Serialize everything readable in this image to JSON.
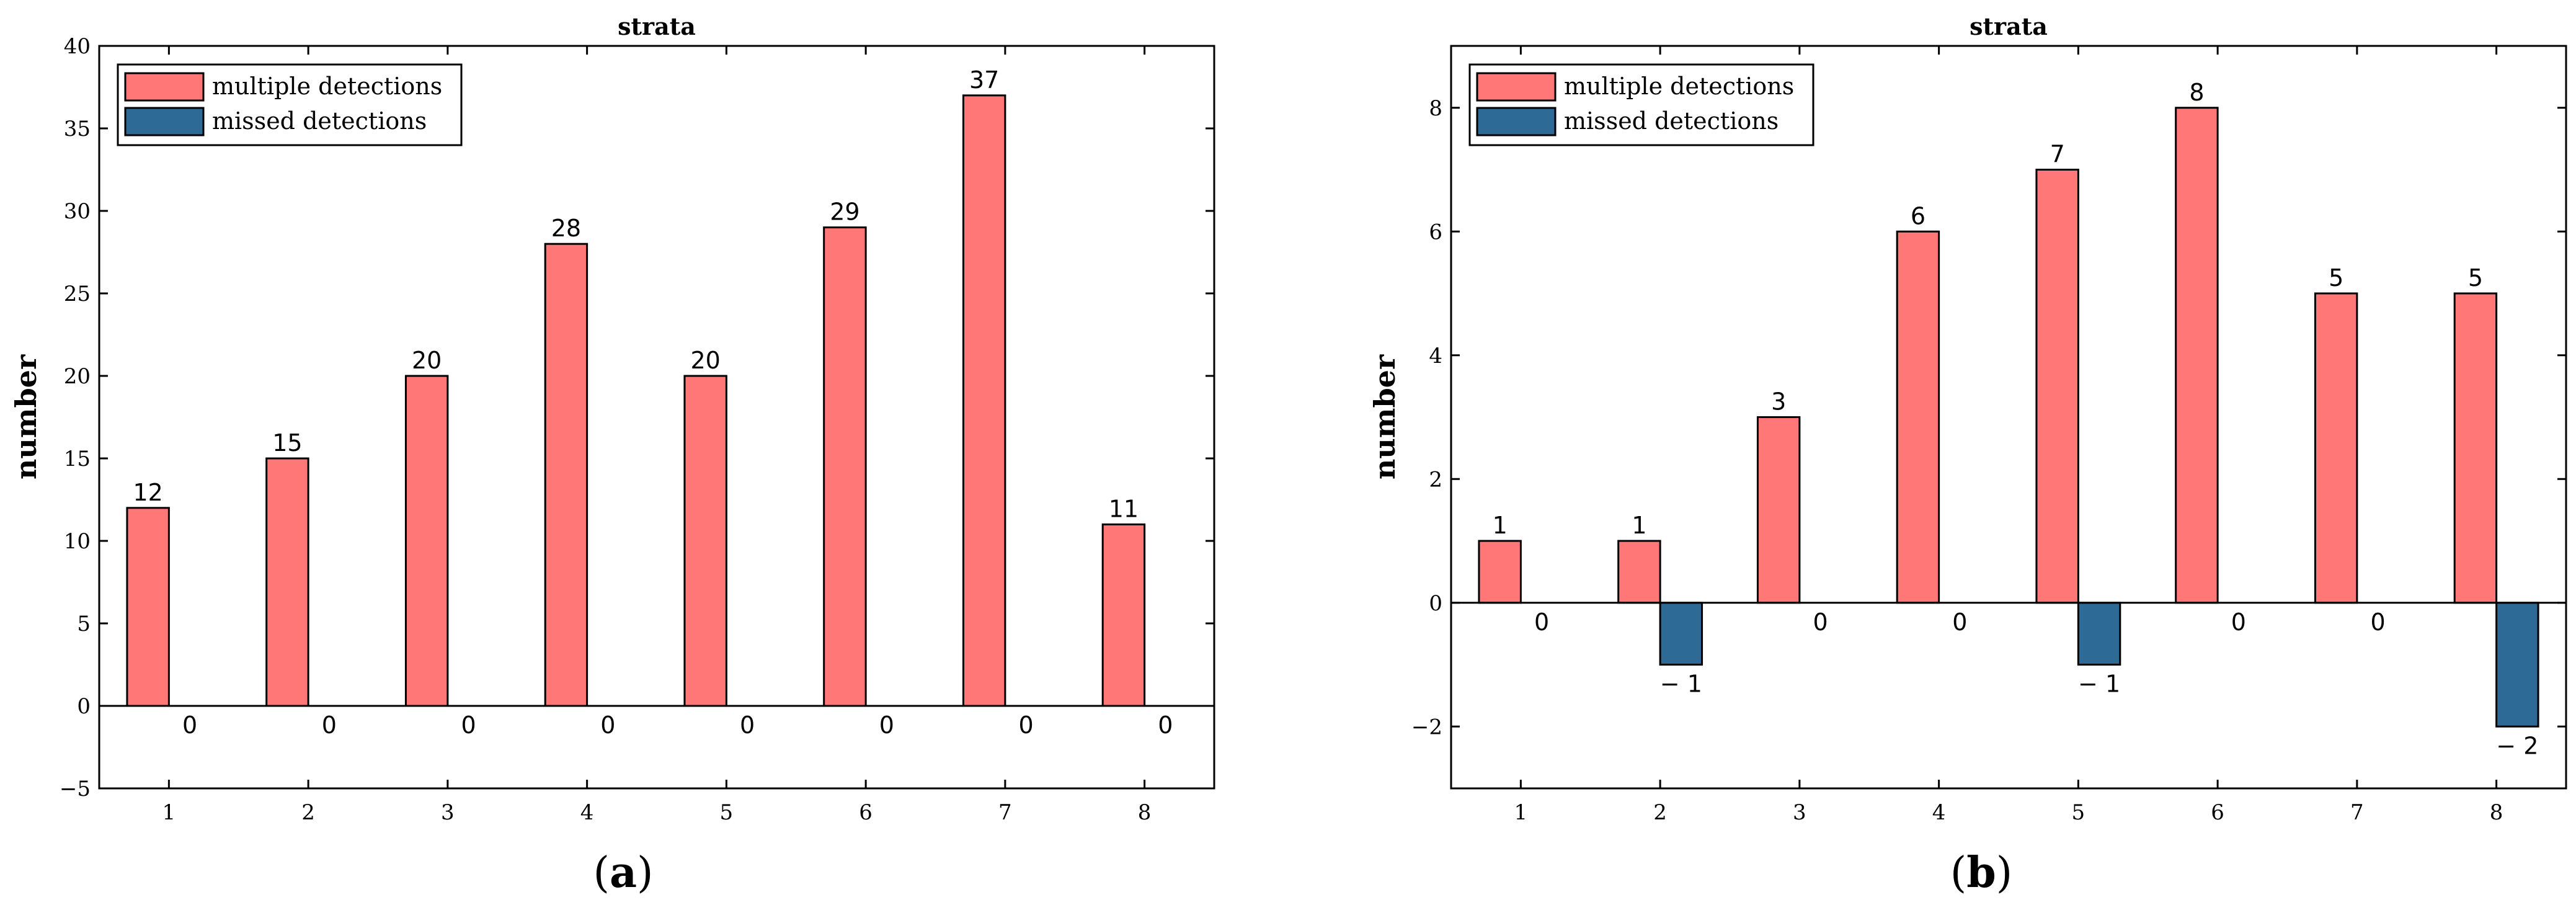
{
  "colors": {
    "multiple": "#FF7777",
    "missed": "#2D6A96",
    "axis": "#000000"
  },
  "chart_data": [
    {
      "type": "bar",
      "panel_label": "a",
      "title": "strata",
      "xlabel": "",
      "ylabel": "number",
      "categories": [
        "1",
        "2",
        "3",
        "4",
        "5",
        "6",
        "7",
        "8"
      ],
      "series": [
        {
          "name": "multiple detections",
          "values": [
            12,
            15,
            20,
            28,
            20,
            29,
            37,
            11
          ]
        },
        {
          "name": "missed detections",
          "values": [
            0,
            0,
            0,
            0,
            0,
            0,
            0,
            0
          ]
        }
      ],
      "data_labels": [
        [
          "12",
          "15",
          "20",
          "28",
          "20",
          "29",
          "37",
          "11"
        ],
        [
          "0",
          "0",
          "0",
          "0",
          "0",
          "0",
          "0",
          "0"
        ]
      ],
      "ylim": [
        -5,
        40
      ],
      "yticks": [
        -5,
        0,
        5,
        10,
        15,
        20,
        25,
        30,
        35,
        40
      ],
      "ytick_labels": [
        "−5",
        "0",
        "5",
        "10",
        "15",
        "20",
        "25",
        "30",
        "35",
        "40"
      ],
      "legend_position": "top-left",
      "grid": false
    },
    {
      "type": "bar",
      "panel_label": "b",
      "title": "strata",
      "xlabel": "",
      "ylabel": "number",
      "categories": [
        "1",
        "2",
        "3",
        "4",
        "5",
        "6",
        "7",
        "8"
      ],
      "series": [
        {
          "name": "multiple detections",
          "values": [
            1,
            1,
            3,
            6,
            7,
            8,
            5,
            5
          ]
        },
        {
          "name": "missed detections",
          "values": [
            0,
            -1,
            0,
            0,
            -1,
            0,
            0,
            -2
          ]
        }
      ],
      "data_labels": [
        [
          "1",
          "1",
          "3",
          "6",
          "7",
          "8",
          "5",
          "5"
        ],
        [
          "0",
          "− 1",
          "0",
          "0",
          "− 1",
          "0",
          "0",
          "− 2"
        ]
      ],
      "ylim": [
        -3,
        9
      ],
      "yticks": [
        -2,
        0,
        2,
        4,
        6,
        8
      ],
      "ytick_labels": [
        "−2",
        "0",
        "2",
        "4",
        "6",
        "8"
      ],
      "legend_position": "top-left",
      "grid": false
    }
  ]
}
